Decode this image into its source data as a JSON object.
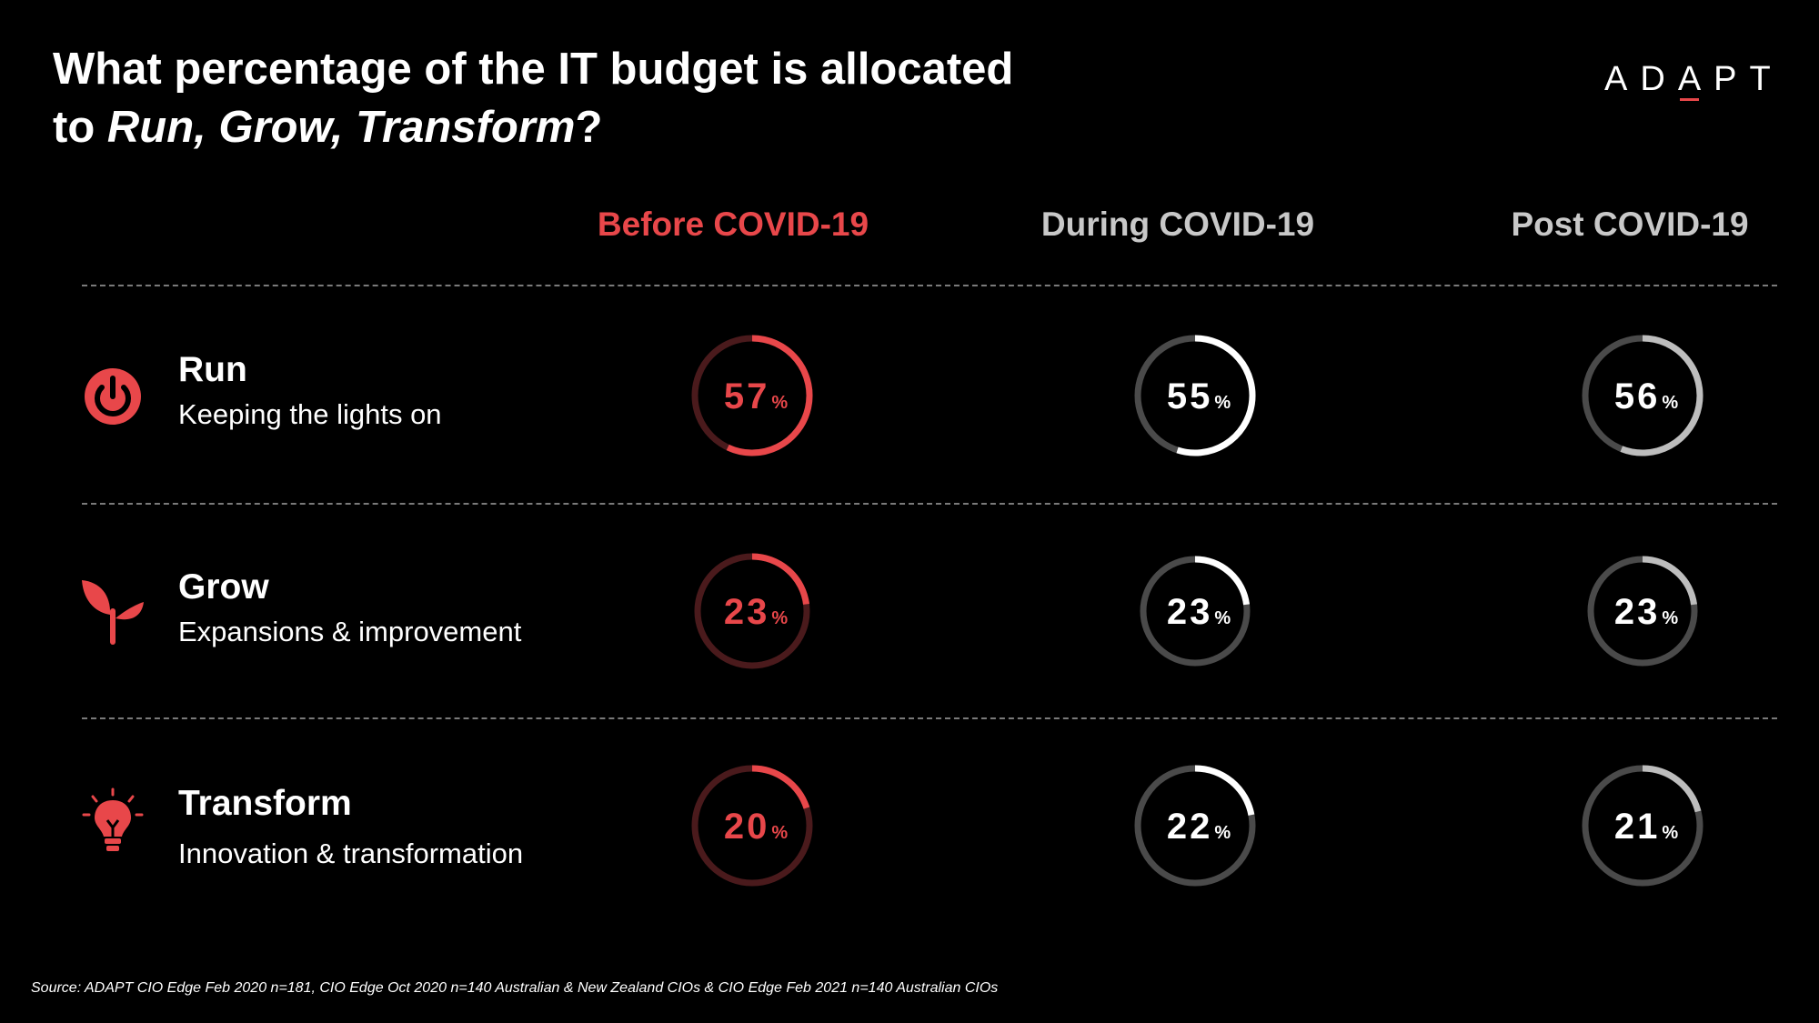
{
  "title": {
    "line1": "What percentage of the IT budget is allocated",
    "line2_prefix": "to ",
    "line2_italic": "Run, Grow, Transform",
    "line2_suffix": "?"
  },
  "logo": {
    "text": "ADAPT"
  },
  "source": "Source: ADAPT CIO Edge Feb 2020 n=181, CIO Edge Oct 2020 n=140 Australian & New Zealand CIOs & CIO Edge Feb 2021 n=140 Australian CIOs",
  "colors": {
    "accent": "#e8474a",
    "accent_track": "#4a1a1c",
    "during_arc": "#ffffff",
    "post_arc": "#bdbdbd",
    "grey_track": "#4a4a4a"
  },
  "icons": [
    "power-icon",
    "sprout-icon",
    "lightbulb-icon"
  ],
  "chart_data": {
    "type": "table",
    "unit": "%",
    "columns": [
      "Before COVID-19",
      "During COVID-19",
      "Post COVID-19"
    ],
    "rows": [
      {
        "name": "Run",
        "description": "Keeping the lights on",
        "values": [
          57,
          55,
          56
        ]
      },
      {
        "name": "Grow",
        "description": "Expansions & improvement",
        "values": [
          23,
          23,
          23
        ]
      },
      {
        "name": "Transform",
        "description": "Innovation & transformation",
        "values": [
          20,
          22,
          21
        ]
      }
    ]
  }
}
